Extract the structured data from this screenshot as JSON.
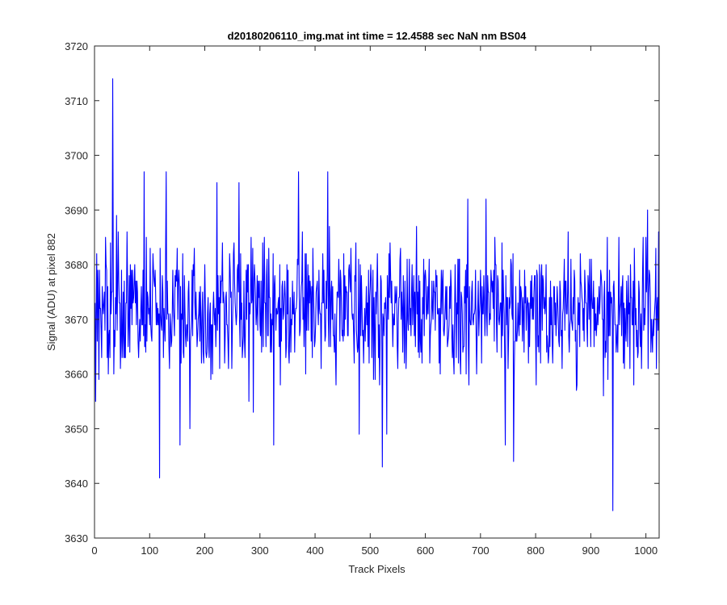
{
  "chart_data": {
    "type": "line",
    "title": "d20180206110_img.mat int time = 12.4588 sec  NaN nm BS04",
    "xlabel": "Track Pixels",
    "ylabel": "Signal (ADU) at pixel 882",
    "xlim": [
      0,
      1024
    ],
    "ylim": [
      3630,
      3720
    ],
    "xticks": [
      0,
      100,
      200,
      300,
      400,
      500,
      600,
      700,
      800,
      900,
      1000
    ],
    "yticks": [
      3630,
      3640,
      3650,
      3660,
      3670,
      3680,
      3690,
      3700,
      3710,
      3720
    ],
    "grid": false,
    "legend": "none",
    "n_points": 1024,
    "series": [
      {
        "name": "",
        "color": "#0000ff",
        "x_start": 1,
        "x_step": 1,
        "baseline": 3672,
        "noise_half_range": 11,
        "seed": 882,
        "extremes": [
          {
            "x": 2,
            "y": 3655
          },
          {
            "x": 4,
            "y": 3682
          },
          {
            "x": 8,
            "y": 3659
          },
          {
            "x": 20,
            "y": 3685
          },
          {
            "x": 33,
            "y": 3714
          },
          {
            "x": 35,
            "y": 3660
          },
          {
            "x": 40,
            "y": 3689
          },
          {
            "x": 50,
            "y": 3663
          },
          {
            "x": 90,
            "y": 3697
          },
          {
            "x": 118,
            "y": 3641
          },
          {
            "x": 125,
            "y": 3663
          },
          {
            "x": 130,
            "y": 3697
          },
          {
            "x": 155,
            "y": 3647
          },
          {
            "x": 173,
            "y": 3650
          },
          {
            "x": 222,
            "y": 3695
          },
          {
            "x": 262,
            "y": 3695
          },
          {
            "x": 280,
            "y": 3655
          },
          {
            "x": 288,
            "y": 3653
          },
          {
            "x": 325,
            "y": 3647
          },
          {
            "x": 370,
            "y": 3697
          },
          {
            "x": 423,
            "y": 3697
          },
          {
            "x": 480,
            "y": 3649
          },
          {
            "x": 522,
            "y": 3643
          },
          {
            "x": 530,
            "y": 3649
          },
          {
            "x": 677,
            "y": 3692
          },
          {
            "x": 710,
            "y": 3692
          },
          {
            "x": 745,
            "y": 3647
          },
          {
            "x": 760,
            "y": 3644
          },
          {
            "x": 875,
            "y": 3658
          },
          {
            "x": 930,
            "y": 3685
          },
          {
            "x": 940,
            "y": 3635
          },
          {
            "x": 1003,
            "y": 3690
          },
          {
            "x": 1023,
            "y": 3686
          }
        ]
      }
    ]
  }
}
